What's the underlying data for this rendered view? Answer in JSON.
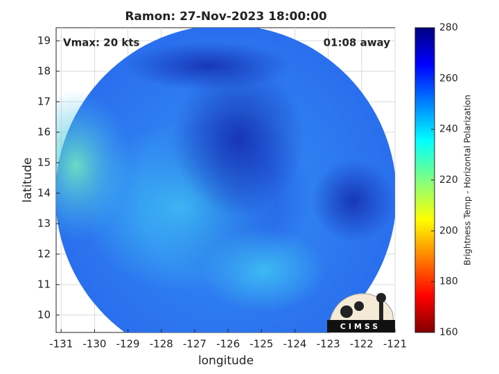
{
  "chart_data": {
    "type": "map",
    "title": "Ramon: 27-Nov-2023 18:00:00",
    "annotations": [
      "Vmax: 20 kts",
      "01:08 away"
    ],
    "xlabel": "longitude",
    "ylabel": "latitude",
    "xlim": [
      -131.15,
      -121
    ],
    "xticks": [
      -131,
      -130,
      -129,
      -128,
      -127,
      -126,
      -125,
      -124,
      -123,
      -122,
      -121
    ],
    "ylim": [
      9.43,
      19.43
    ],
    "yticks": [
      10,
      11,
      12,
      13,
      14,
      15,
      16,
      17,
      18,
      19
    ],
    "grid": true,
    "colorbar": {
      "label": "Brightness Temp - Horizontal Polarization",
      "lim": [
        160,
        280
      ],
      "ticks": [
        160,
        180,
        200,
        220,
        240,
        260,
        280
      ]
    },
    "logo_text": "CIMSS"
  }
}
